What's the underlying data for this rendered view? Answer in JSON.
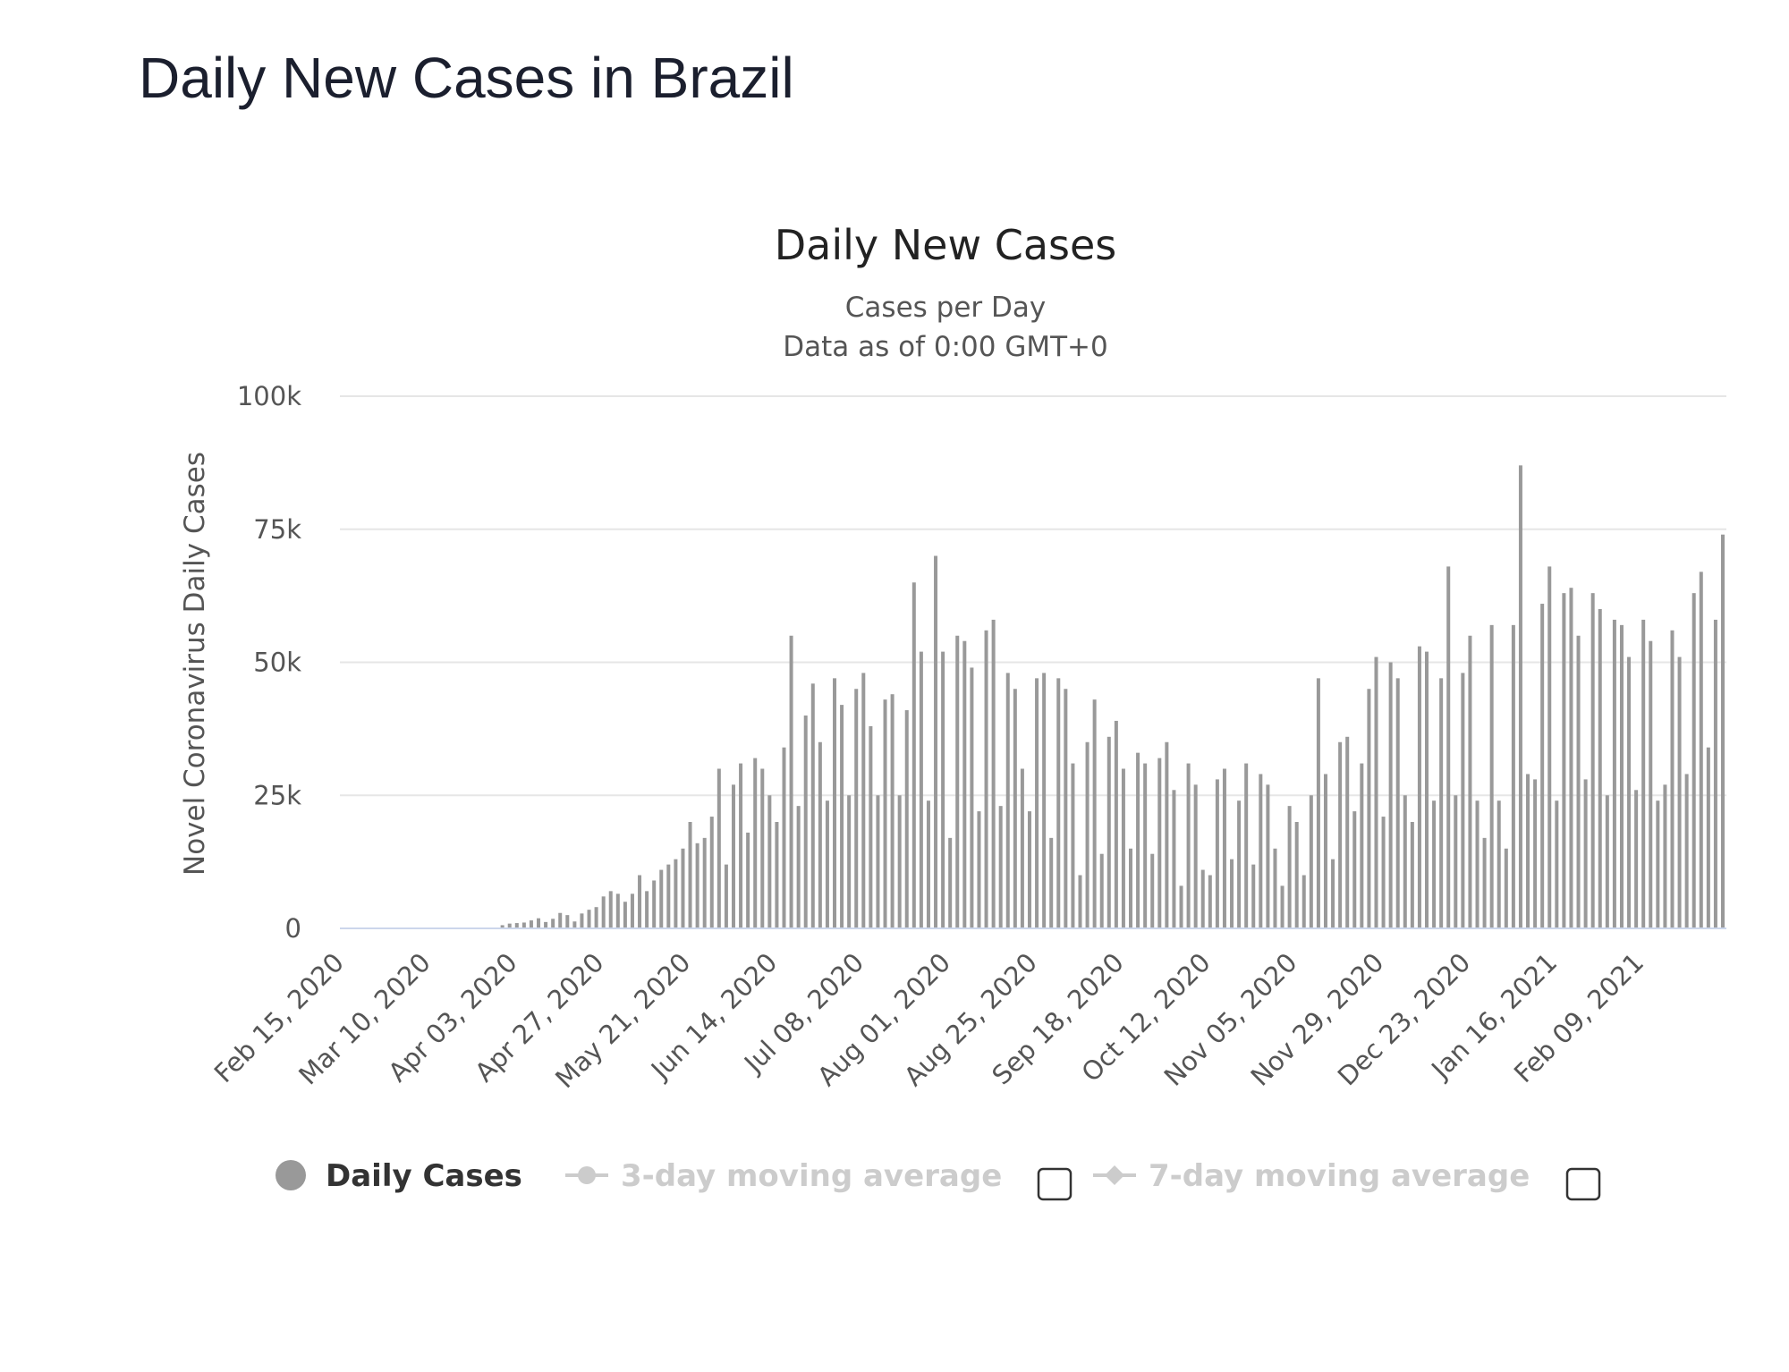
{
  "page": {
    "title": "Daily New Cases in Brazil"
  },
  "colors": {
    "bar": "#999999",
    "grid": "#e6e6e6",
    "axis": "#ccd6eb",
    "legend_active": "#333333",
    "legend_inactive": "#cccccc"
  },
  "legend": {
    "items": [
      {
        "label": "Daily Cases",
        "active": true,
        "marker": "dot-icon",
        "has_checkbox": false
      },
      {
        "label": "3-day moving average",
        "active": false,
        "marker": "line-dot-icon",
        "has_checkbox": true
      },
      {
        "label": "7-day moving average",
        "active": false,
        "marker": "line-diamond-icon",
        "has_checkbox": true
      }
    ]
  },
  "chart_data": {
    "type": "bar",
    "title": "Daily New Cases",
    "subtitle": [
      "Cases per Day",
      "Data as of 0:00 GMT+0"
    ],
    "ylabel": "Novel Coronavirus Daily Cases",
    "ylim": [
      0,
      100000
    ],
    "yticks": [
      0,
      25000,
      50000,
      75000,
      100000
    ],
    "ytick_labels": [
      "0",
      "25k",
      "50k",
      "75k",
      "100k"
    ],
    "xlim": [
      "2020-02-15",
      "2021-03-04"
    ],
    "xtick_labels": [
      "Feb 15, 2020",
      "Mar 10, 2020",
      "Apr 03, 2020",
      "Apr 27, 2020",
      "May 21, 2020",
      "Jun 14, 2020",
      "Jul 08, 2020",
      "Aug 01, 2020",
      "Aug 25, 2020",
      "Sep 18, 2020",
      "Oct 12, 2020",
      "Nov 05, 2020",
      "Nov 29, 2020",
      "Dec 23, 2020",
      "Jan 16, 2021",
      "Feb 09, 2021"
    ],
    "grid": true,
    "legend_position": "bottom",
    "series": [
      {
        "name": "Daily Cases",
        "points": [
          [
            "2020-03-31",
            600
          ],
          [
            "2020-04-02",
            900
          ],
          [
            "2020-04-04",
            1000
          ],
          [
            "2020-04-06",
            1100
          ],
          [
            "2020-04-08",
            1500
          ],
          [
            "2020-04-10",
            1900
          ],
          [
            "2020-04-12",
            1200
          ],
          [
            "2020-04-14",
            1800
          ],
          [
            "2020-04-16",
            2900
          ],
          [
            "2020-04-18",
            2500
          ],
          [
            "2020-04-20",
            1300
          ],
          [
            "2020-04-22",
            2800
          ],
          [
            "2020-04-24",
            3500
          ],
          [
            "2020-04-26",
            4000
          ],
          [
            "2020-04-28",
            6000
          ],
          [
            "2020-04-30",
            7000
          ],
          [
            "2020-05-02",
            6500
          ],
          [
            "2020-05-04",
            5000
          ],
          [
            "2020-05-06",
            6500
          ],
          [
            "2020-05-08",
            10000
          ],
          [
            "2020-05-10",
            7000
          ],
          [
            "2020-05-12",
            9000
          ],
          [
            "2020-05-14",
            11000
          ],
          [
            "2020-05-16",
            12000
          ],
          [
            "2020-05-18",
            13000
          ],
          [
            "2020-05-20",
            15000
          ],
          [
            "2020-05-22",
            20000
          ],
          [
            "2020-05-24",
            16000
          ],
          [
            "2020-05-26",
            17000
          ],
          [
            "2020-05-28",
            21000
          ],
          [
            "2020-05-30",
            30000
          ],
          [
            "2020-06-01",
            12000
          ],
          [
            "2020-06-03",
            27000
          ],
          [
            "2020-06-05",
            31000
          ],
          [
            "2020-06-07",
            18000
          ],
          [
            "2020-06-09",
            32000
          ],
          [
            "2020-06-11",
            30000
          ],
          [
            "2020-06-13",
            25000
          ],
          [
            "2020-06-15",
            20000
          ],
          [
            "2020-06-17",
            34000
          ],
          [
            "2020-06-19",
            55000
          ],
          [
            "2020-06-21",
            23000
          ],
          [
            "2020-06-23",
            40000
          ],
          [
            "2020-06-25",
            46000
          ],
          [
            "2020-06-27",
            35000
          ],
          [
            "2020-06-29",
            24000
          ],
          [
            "2020-07-01",
            47000
          ],
          [
            "2020-07-03",
            42000
          ],
          [
            "2020-07-05",
            25000
          ],
          [
            "2020-07-07",
            45000
          ],
          [
            "2020-07-09",
            48000
          ],
          [
            "2020-07-11",
            38000
          ],
          [
            "2020-07-13",
            25000
          ],
          [
            "2020-07-15",
            43000
          ],
          [
            "2020-07-17",
            44000
          ],
          [
            "2020-07-19",
            25000
          ],
          [
            "2020-07-21",
            41000
          ],
          [
            "2020-07-23",
            65000
          ],
          [
            "2020-07-25",
            52000
          ],
          [
            "2020-07-27",
            24000
          ],
          [
            "2020-07-29",
            70000
          ],
          [
            "2020-07-31",
            52000
          ],
          [
            "2020-08-02",
            17000
          ],
          [
            "2020-08-04",
            55000
          ],
          [
            "2020-08-06",
            54000
          ],
          [
            "2020-08-08",
            49000
          ],
          [
            "2020-08-10",
            22000
          ],
          [
            "2020-08-12",
            56000
          ],
          [
            "2020-08-14",
            58000
          ],
          [
            "2020-08-16",
            23000
          ],
          [
            "2020-08-18",
            48000
          ],
          [
            "2020-08-20",
            45000
          ],
          [
            "2020-08-22",
            30000
          ],
          [
            "2020-08-24",
            22000
          ],
          [
            "2020-08-26",
            47000
          ],
          [
            "2020-08-28",
            48000
          ],
          [
            "2020-08-30",
            17000
          ],
          [
            "2020-09-01",
            47000
          ],
          [
            "2020-09-03",
            45000
          ],
          [
            "2020-09-05",
            31000
          ],
          [
            "2020-09-07",
            10000
          ],
          [
            "2020-09-09",
            35000
          ],
          [
            "2020-09-11",
            43000
          ],
          [
            "2020-09-13",
            14000
          ],
          [
            "2020-09-15",
            36000
          ],
          [
            "2020-09-17",
            39000
          ],
          [
            "2020-09-19",
            30000
          ],
          [
            "2020-09-21",
            15000
          ],
          [
            "2020-09-23",
            33000
          ],
          [
            "2020-09-25",
            31000
          ],
          [
            "2020-09-27",
            14000
          ],
          [
            "2020-09-29",
            32000
          ],
          [
            "2020-10-01",
            35000
          ],
          [
            "2020-10-03",
            26000
          ],
          [
            "2020-10-05",
            8000
          ],
          [
            "2020-10-07",
            31000
          ],
          [
            "2020-10-09",
            27000
          ],
          [
            "2020-10-11",
            11000
          ],
          [
            "2020-10-13",
            10000
          ],
          [
            "2020-10-15",
            28000
          ],
          [
            "2020-10-17",
            30000
          ],
          [
            "2020-10-19",
            13000
          ],
          [
            "2020-10-21",
            24000
          ],
          [
            "2020-10-23",
            31000
          ],
          [
            "2020-10-25",
            12000
          ],
          [
            "2020-10-27",
            29000
          ],
          [
            "2020-10-29",
            27000
          ],
          [
            "2020-10-31",
            15000
          ],
          [
            "2020-11-02",
            8000
          ],
          [
            "2020-11-04",
            23000
          ],
          [
            "2020-11-06",
            20000
          ],
          [
            "2020-11-08",
            10000
          ],
          [
            "2020-11-10",
            25000
          ],
          [
            "2020-11-12",
            47000
          ],
          [
            "2020-11-14",
            29000
          ],
          [
            "2020-11-16",
            13000
          ],
          [
            "2020-11-18",
            35000
          ],
          [
            "2020-11-20",
            36000
          ],
          [
            "2020-11-22",
            22000
          ],
          [
            "2020-11-24",
            31000
          ],
          [
            "2020-11-26",
            45000
          ],
          [
            "2020-11-28",
            51000
          ],
          [
            "2020-11-30",
            21000
          ],
          [
            "2020-12-02",
            50000
          ],
          [
            "2020-12-04",
            47000
          ],
          [
            "2020-12-06",
            25000
          ],
          [
            "2020-12-08",
            20000
          ],
          [
            "2020-12-10",
            53000
          ],
          [
            "2020-12-12",
            52000
          ],
          [
            "2020-12-14",
            24000
          ],
          [
            "2020-12-16",
            47000
          ],
          [
            "2020-12-18",
            68000
          ],
          [
            "2020-12-20",
            25000
          ],
          [
            "2020-12-22",
            48000
          ],
          [
            "2020-12-24",
            55000
          ],
          [
            "2020-12-26",
            24000
          ],
          [
            "2020-12-28",
            17000
          ],
          [
            "2020-12-30",
            57000
          ],
          [
            "2021-01-01",
            24000
          ],
          [
            "2021-01-03",
            15000
          ],
          [
            "2021-01-05",
            57000
          ],
          [
            "2021-01-07",
            87000
          ],
          [
            "2021-01-09",
            29000
          ],
          [
            "2021-01-11",
            28000
          ],
          [
            "2021-01-13",
            61000
          ],
          [
            "2021-01-15",
            68000
          ],
          [
            "2021-01-17",
            24000
          ],
          [
            "2021-01-19",
            63000
          ],
          [
            "2021-01-21",
            64000
          ],
          [
            "2021-01-23",
            55000
          ],
          [
            "2021-01-25",
            28000
          ],
          [
            "2021-01-27",
            63000
          ],
          [
            "2021-01-29",
            60000
          ],
          [
            "2021-01-31",
            25000
          ],
          [
            "2021-02-02",
            58000
          ],
          [
            "2021-02-04",
            57000
          ],
          [
            "2021-02-06",
            51000
          ],
          [
            "2021-02-08",
            26000
          ],
          [
            "2021-02-10",
            58000
          ],
          [
            "2021-02-12",
            54000
          ],
          [
            "2021-02-14",
            24000
          ],
          [
            "2021-02-16",
            27000
          ],
          [
            "2021-02-18",
            56000
          ],
          [
            "2021-02-20",
            51000
          ],
          [
            "2021-02-22",
            29000
          ],
          [
            "2021-02-24",
            63000
          ],
          [
            "2021-02-26",
            67000
          ],
          [
            "2021-02-28",
            34000
          ],
          [
            "2021-03-02",
            58000
          ],
          [
            "2021-03-04",
            74000
          ]
        ]
      }
    ]
  }
}
